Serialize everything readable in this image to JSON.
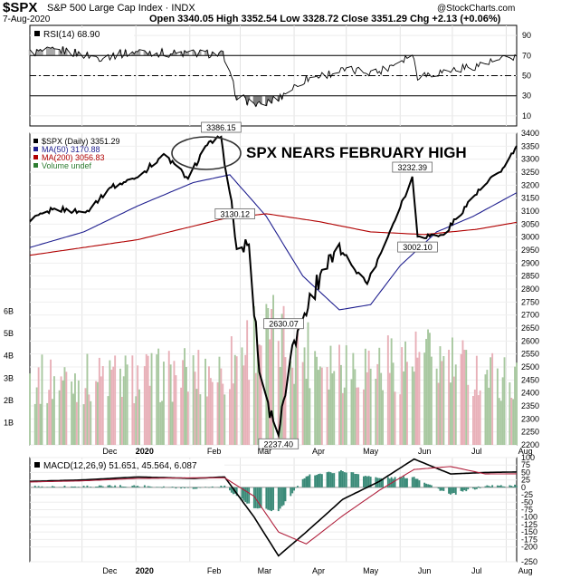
{
  "header": {
    "symbol": "$SPX",
    "name": "S&P 500 Large Cap Index",
    "exchange": "INDX",
    "watermark": "@StockCharts.com",
    "date": "7-Aug-2020",
    "ohlc": "Open 3340.05  High 3352.54  Low 3328.72  Close 3351.29  Chg +2.13 (+0.06%)"
  },
  "annotation": "SPX NEARS FEBRUARY HIGH",
  "colors": {
    "price": "#000000",
    "ma50": "#1f1f8f",
    "ma200": "#b00000",
    "volume_up": "#a8c8a0",
    "volume_down": "#e8b0b8",
    "macd_hist": "#3a8a78",
    "signal": "#b0203c",
    "rsi_upper": "#a8a8a8"
  },
  "chart_data": [
    {
      "type": "line",
      "panel": "rsi",
      "title": "RSI(14) 68.90",
      "ylim": [
        0,
        100
      ],
      "y_ticks": [
        10,
        30,
        50,
        70,
        90
      ],
      "reference_lines": [
        70,
        50,
        30
      ],
      "x": [
        "2019-11-01",
        "2019-11-20",
        "2019-12-10",
        "2020-01-02",
        "2020-01-22",
        "2020-02-12",
        "2020-02-20",
        "2020-02-28",
        "2020-03-12",
        "2020-03-23",
        "2020-04-08",
        "2020-04-29",
        "2020-05-20",
        "2020-06-08",
        "2020-06-11",
        "2020-06-26",
        "2020-07-15",
        "2020-08-07"
      ],
      "values": [
        73,
        75,
        68,
        74,
        72,
        72,
        71,
        30,
        20,
        28,
        47,
        55,
        54,
        72,
        50,
        54,
        60,
        69
      ]
    },
    {
      "type": "line",
      "panel": "price",
      "ylim": [
        2200,
        3400
      ],
      "y_ticks": [
        2200,
        2250,
        2300,
        2350,
        2400,
        2450,
        2500,
        2550,
        2600,
        2650,
        2700,
        2750,
        2800,
        2850,
        2900,
        2950,
        3000,
        3050,
        3100,
        3150,
        3200,
        3250,
        3300,
        3350,
        3400
      ],
      "x_ticks": [
        "Dec",
        "2020",
        "Feb",
        "Mar",
        "Apr",
        "May",
        "Jun",
        "Jul",
        "Aug"
      ],
      "legend": [
        "$SPX (Daily) 3351.29",
        "MA(50) 3170.88",
        "MA(200) 3056.83",
        "Volume undef"
      ],
      "series": [
        {
          "name": "$SPX (Daily) 3351.29",
          "x": [
            "2019-11-01",
            "2019-11-15",
            "2019-12-03",
            "2019-12-17",
            "2020-01-02",
            "2020-01-17",
            "2020-01-31",
            "2020-02-10",
            "2020-02-19",
            "2020-02-28",
            "2020-03-06",
            "2020-03-12",
            "2020-03-16",
            "2020-03-23",
            "2020-03-31",
            "2020-04-17",
            "2020-04-29",
            "2020-05-13",
            "2020-05-27",
            "2020-06-08",
            "2020-06-11",
            "2020-06-26",
            "2020-07-13",
            "2020-07-31",
            "2020-08-07"
          ],
          "values": [
            3060,
            3110,
            3095,
            3190,
            3230,
            3320,
            3225,
            3350,
            3386.15,
            2954,
            2972,
            2480,
            2386,
            2237.4,
            2584,
            2874,
            2939,
            2820,
            3036,
            3232.39,
            3002.1,
            3009,
            3155,
            3271,
            3351.29
          ]
        },
        {
          "name": "MA(50) 3170.88",
          "x": [
            "2019-11-01",
            "2019-12-02",
            "2020-01-02",
            "2020-02-03",
            "2020-02-24",
            "2020-03-16",
            "2020-04-06",
            "2020-04-27",
            "2020-05-15",
            "2020-06-01",
            "2020-06-22",
            "2020-07-13",
            "2020-08-07"
          ],
          "values": [
            2960,
            3020,
            3120,
            3210,
            3240,
            3080,
            2850,
            2720,
            2740,
            2890,
            3020,
            3080,
            3170.88
          ]
        },
        {
          "name": "MA(200) 3056.83",
          "x": [
            "2019-11-01",
            "2020-01-02",
            "2020-02-20",
            "2020-03-16",
            "2020-04-15",
            "2020-05-15",
            "2020-06-15",
            "2020-07-15",
            "2020-08-07"
          ],
          "values": [
            2930,
            2990,
            3070,
            3090,
            3060,
            3020,
            3010,
            3030,
            3056.83
          ]
        }
      ],
      "data_labels": [
        {
          "x": "2020-02-19",
          "y": 3386.15,
          "text": "3386.15"
        },
        {
          "x": "2020-02-27",
          "y": 3130.12,
          "text": "3130.12"
        },
        {
          "x": "2020-03-23",
          "y": 2237.4,
          "text": "2237.40"
        },
        {
          "x": "2020-03-26",
          "y": 2630.07,
          "text": "2630.07"
        },
        {
          "x": "2020-06-08",
          "y": 3232.39,
          "text": "3232.39"
        },
        {
          "x": "2020-06-11",
          "y": 3002.1,
          "text": "3002.10"
        }
      ]
    },
    {
      "type": "bar",
      "panel": "volume",
      "ylabel": "Volume",
      "ylim": [
        0,
        7
      ],
      "y_ticks": [
        "1B",
        "2B",
        "3B",
        "4B",
        "5B",
        "6B"
      ],
      "y_tick_values": [
        1,
        2,
        3,
        4,
        5,
        6
      ],
      "profile_x": [
        "2019-11-01",
        "2019-12-10",
        "2020-01-15",
        "2020-02-20",
        "2020-03-10",
        "2020-03-23",
        "2020-04-15",
        "2020-05-15",
        "2020-06-15",
        "2020-07-15",
        "2020-08-07"
      ],
      "profile_values": [
        2.9,
        3.0,
        3.1,
        3.3,
        5.0,
        4.8,
        4.0,
        3.6,
        3.9,
        3.3,
        2.9
      ]
    },
    {
      "type": "line",
      "panel": "macd",
      "title": "MACD(12,26,9) 51.651, 45.564, 6.087",
      "ylim": [
        -250,
        100
      ],
      "y_ticks": [
        100,
        75,
        50,
        25,
        0,
        -25,
        -50,
        -75,
        -100,
        -125,
        -150,
        -175,
        -200,
        -250
      ],
      "x_ticks": [
        "Dec",
        "2020",
        "Feb",
        "Mar",
        "Apr",
        "May",
        "Jun",
        "Jul",
        "Aug"
      ],
      "series": [
        {
          "name": "MACD",
          "x": [
            "2019-11-01",
            "2019-12-02",
            "2020-01-02",
            "2020-02-03",
            "2020-02-21",
            "2020-03-09",
            "2020-03-23",
            "2020-04-08",
            "2020-04-29",
            "2020-05-20",
            "2020-06-09",
            "2020-06-30",
            "2020-07-20",
            "2020-08-07"
          ],
          "values": [
            20,
            25,
            35,
            30,
            35,
            -100,
            -230,
            -150,
            -40,
            20,
            95,
            45,
            50,
            51.651
          ]
        },
        {
          "name": "Signal",
          "x": [
            "2019-11-01",
            "2019-12-02",
            "2020-01-02",
            "2020-02-03",
            "2020-02-21",
            "2020-03-09",
            "2020-03-23",
            "2020-04-08",
            "2020-04-29",
            "2020-05-20",
            "2020-06-09",
            "2020-06-30",
            "2020-07-20",
            "2020-08-07"
          ],
          "values": [
            18,
            22,
            30,
            32,
            32,
            -30,
            -150,
            -190,
            -95,
            -10,
            60,
            70,
            45,
            45.564
          ]
        },
        {
          "name": "Histogram",
          "x": [
            "2019-11-01",
            "2019-12-02",
            "2020-01-02",
            "2020-02-03",
            "2020-02-21",
            "2020-03-09",
            "2020-03-23",
            "2020-04-08",
            "2020-04-29",
            "2020-05-20",
            "2020-06-09",
            "2020-06-30",
            "2020-07-20",
            "2020-08-07"
          ],
          "values": [
            2,
            3,
            5,
            -2,
            3,
            -70,
            -80,
            40,
            55,
            30,
            35,
            -25,
            5,
            6.087
          ]
        }
      ]
    }
  ]
}
